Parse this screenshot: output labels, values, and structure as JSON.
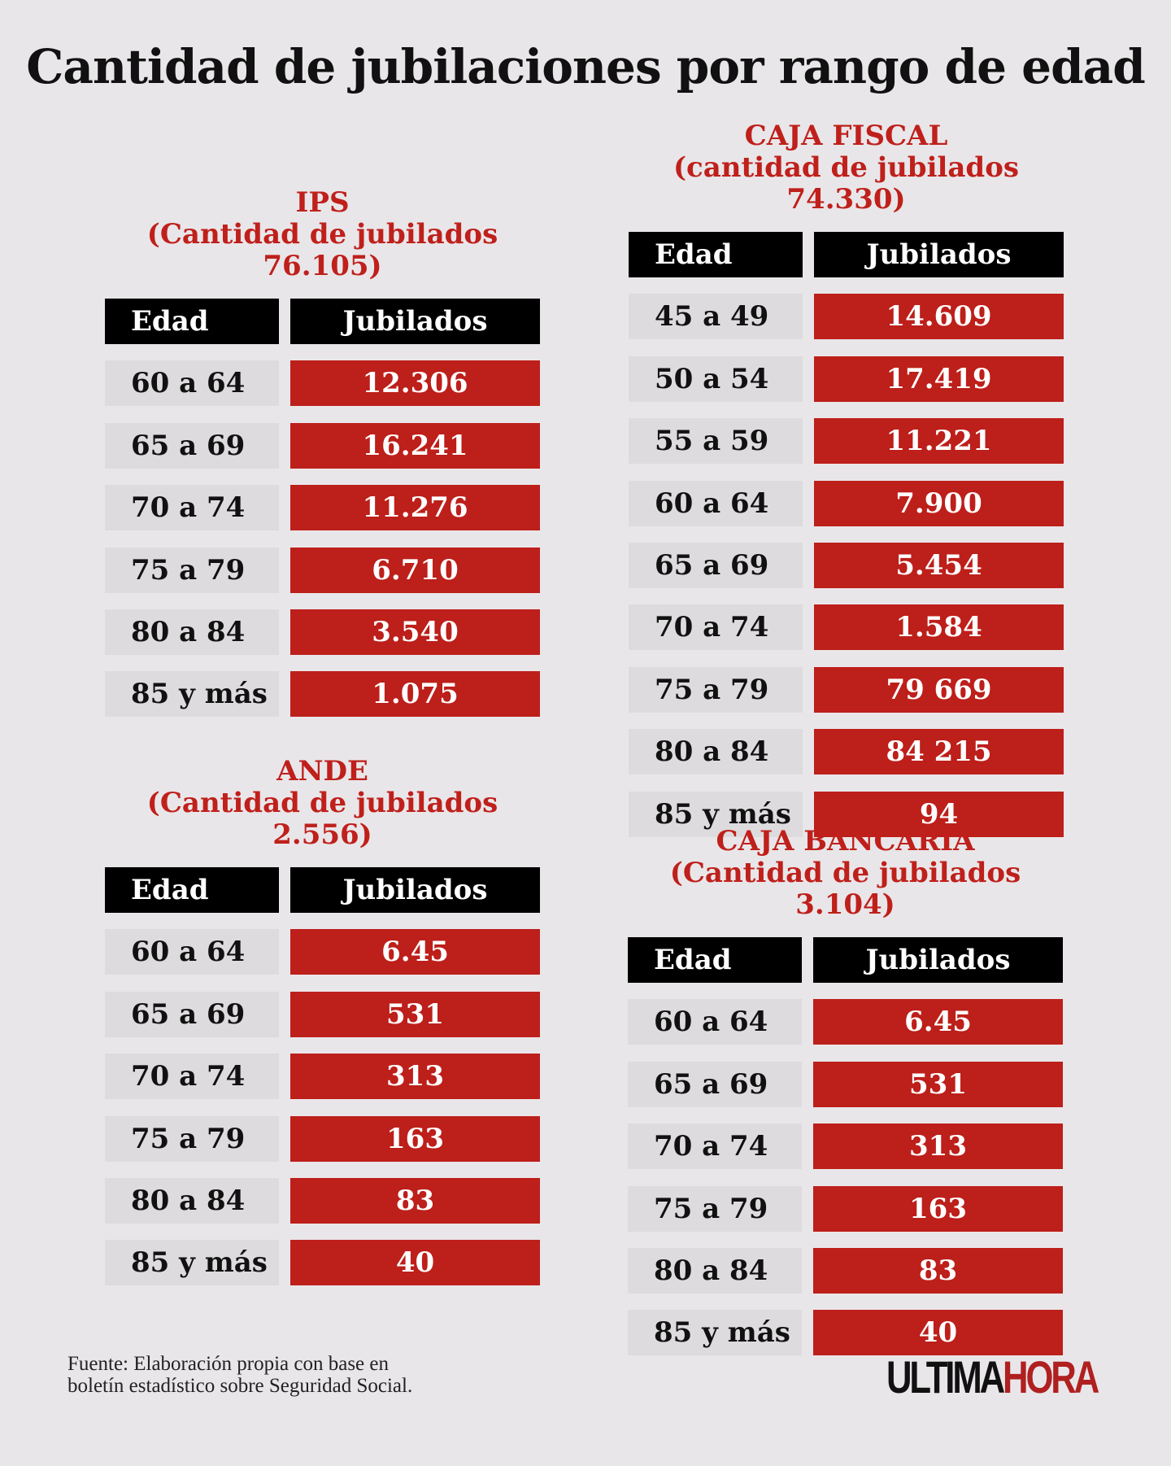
{
  "title": "Cantidad de jubilaciones por rango de edad",
  "colors": {
    "accent": "#bd1f1a",
    "header_bg": "#000000",
    "label_bg": "#dedbde",
    "background": "#e9e6e9"
  },
  "sections": [
    {
      "id": "ips",
      "name": "IPS",
      "subtitle": "(Cantidad de jubilados 76.105)",
      "col1": "Edad",
      "col2": "Jubilados",
      "rows": [
        [
          "60 a 64",
          "12.306"
        ],
        [
          "65 a 69",
          "16.241"
        ],
        [
          "70 a 74",
          "11.276"
        ],
        [
          "75 a 79",
          "6.710"
        ],
        [
          "80 a 84",
          "3.540"
        ],
        [
          "85 y más",
          "1.075"
        ]
      ]
    },
    {
      "id": "ande",
      "name": "ANDE",
      "subtitle": "(Cantidad de jubilados 2.556)",
      "col1": "Edad",
      "col2": "Jubilados",
      "rows": [
        [
          "60 a 64",
          "6.45"
        ],
        [
          "65 a 69",
          "531"
        ],
        [
          "70 a 74",
          "313"
        ],
        [
          "75 a 79",
          "163"
        ],
        [
          "80 a 84",
          "83"
        ],
        [
          "85 y más",
          "40"
        ]
      ]
    },
    {
      "id": "caja-fiscal",
      "name": "CAJA FISCAL",
      "subtitle": "(cantidad de jubilados 74.330)",
      "col1": "Edad",
      "col2": "Jubilados",
      "rows": [
        [
          "45 a 49",
          "14.609"
        ],
        [
          "50 a 54",
          "17.419"
        ],
        [
          "55 a 59",
          "11.221"
        ],
        [
          "60 a 64",
          "7.900"
        ],
        [
          "65 a 69",
          "5.454"
        ],
        [
          "70 a 74",
          "1.584"
        ],
        [
          "75 a 79",
          "79 669"
        ],
        [
          "80 a 84",
          "84 215"
        ],
        [
          "85 y más",
          "94"
        ]
      ]
    },
    {
      "id": "caja-bancaria",
      "name": "CAJA BANCARIA",
      "subtitle": "(Cantidad de jubilados 3.104)",
      "col1": "Edad",
      "col2": "Jubilados",
      "rows": [
        [
          "60 a 64",
          "6.45"
        ],
        [
          "65 a 69",
          "531"
        ],
        [
          "70 a 74",
          "313"
        ],
        [
          "75 a 79",
          "163"
        ],
        [
          "80 a 84",
          "83"
        ],
        [
          "85 y más",
          "40"
        ]
      ]
    }
  ],
  "footer": {
    "line1": "Fuente: Elaboración propia con base en",
    "line2": "boletín estadístico sobre Seguridad Social."
  },
  "logo": {
    "part1": "ULTIMA",
    "part2": "HORA"
  }
}
